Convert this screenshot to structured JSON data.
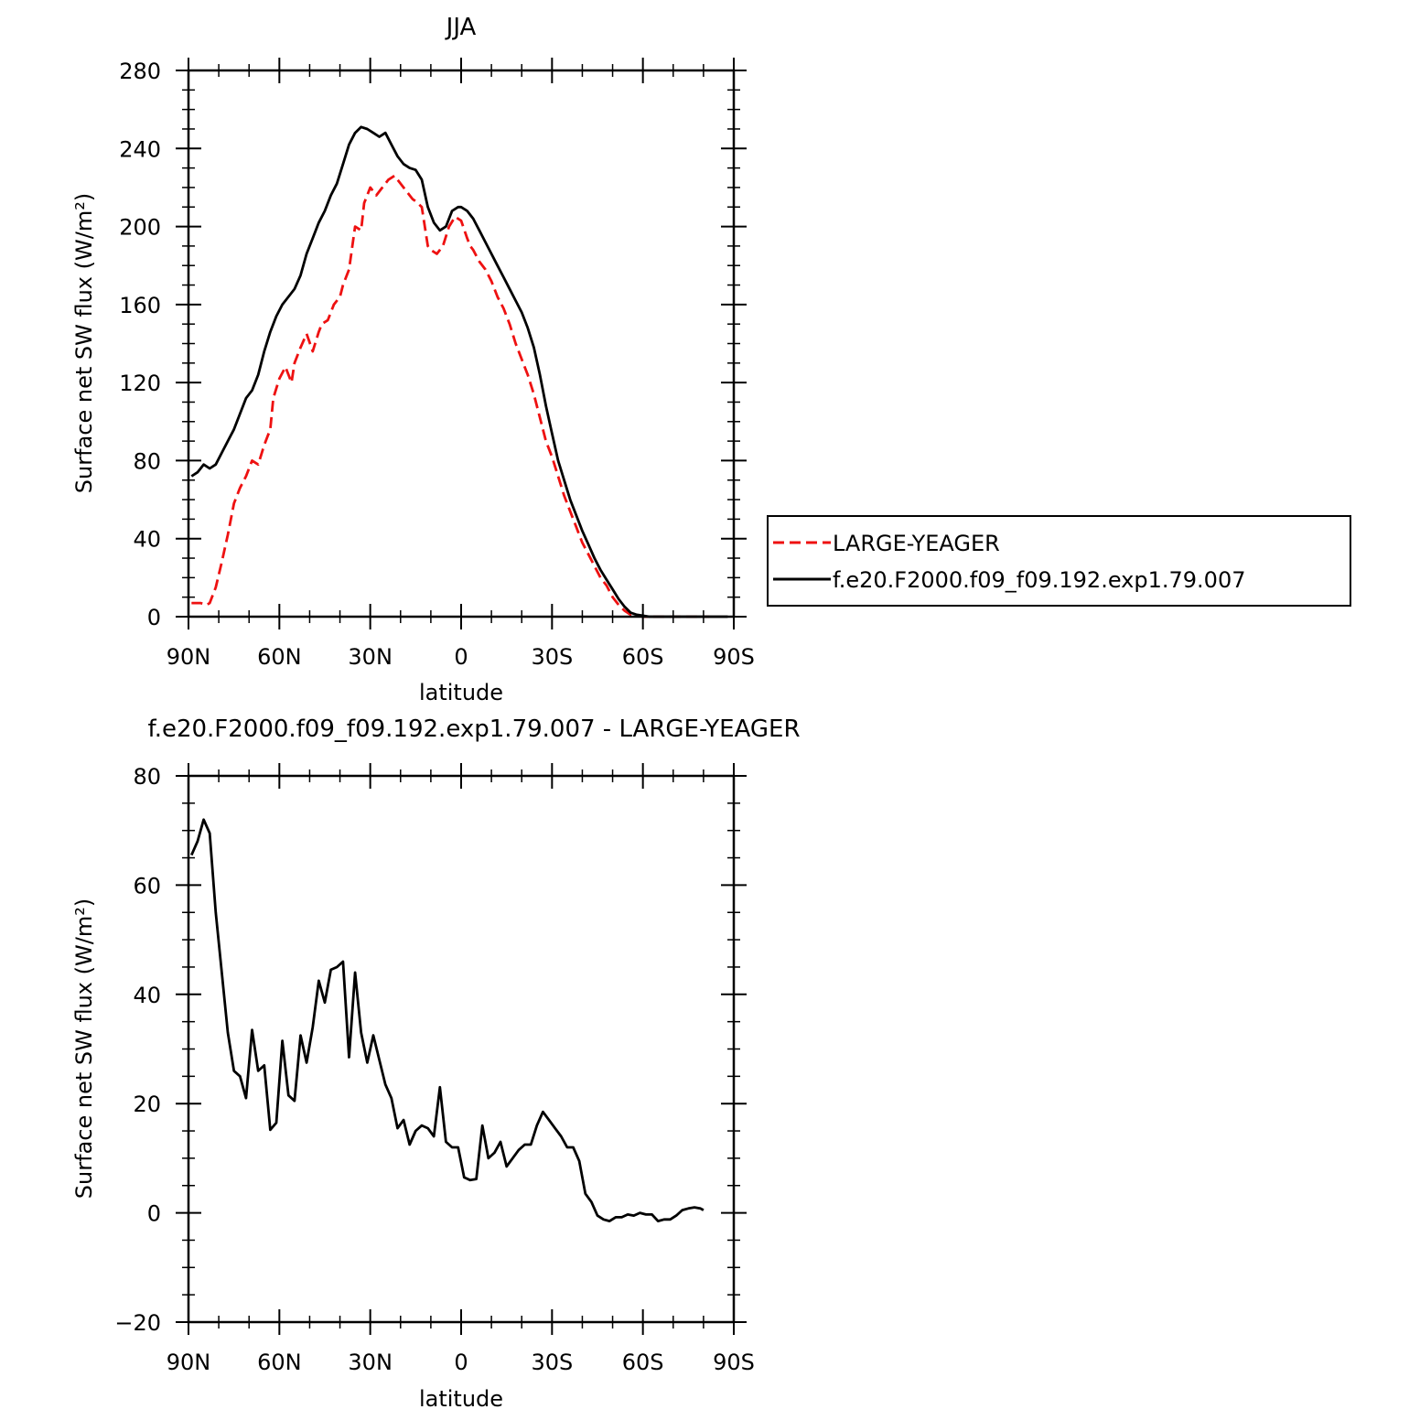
{
  "chart_data": [
    {
      "type": "line",
      "title": "JJA",
      "xlabel": "latitude",
      "ylabel": "Surface net SW flux (W/m²)",
      "xlim": [
        90,
        -90
      ],
      "ylim": [
        0,
        280
      ],
      "xticks": [
        90,
        60,
        30,
        0,
        -30,
        -60,
        -90
      ],
      "xtick_labels": [
        "90N",
        "60N",
        "30N",
        "0",
        "30S",
        "60S",
        "90S"
      ],
      "yticks": [
        0,
        40,
        80,
        120,
        160,
        200,
        240,
        280
      ],
      "ytick_labels": [
        "0",
        "40",
        "80",
        "120",
        "160",
        "200",
        "240",
        "280"
      ],
      "legend": {
        "placement": "right",
        "entries": [
          {
            "label": "LARGE-YEAGER",
            "color": "#ee1111",
            "dash": "dashed"
          },
          {
            "label": "f.e20.F2000.f09_f09.192.exp1.79.007",
            "color": "#000000",
            "dash": "solid"
          }
        ]
      },
      "series": [
        {
          "name": "LARGE-YEAGER",
          "color": "#ee1111",
          "style": "dashed",
          "x": [
            89,
            86,
            84,
            83,
            81,
            79,
            77,
            75,
            73,
            71,
            69,
            67,
            65,
            64,
            63,
            62,
            60,
            58,
            56,
            55,
            53,
            51,
            49,
            47,
            46,
            44,
            42,
            40,
            39,
            38,
            37,
            35,
            33,
            32,
            30,
            28,
            26,
            24,
            22,
            20,
            18,
            16,
            15,
            13,
            11,
            10,
            8,
            6,
            4,
            2,
            0,
            -2,
            -3,
            -4,
            -6,
            -8,
            -10,
            -12,
            -14,
            -16,
            -18,
            -20,
            -22,
            -24,
            -26,
            -28,
            -30,
            -32,
            -34,
            -36,
            -38,
            -40,
            -42,
            -44,
            -46,
            -48,
            -50,
            -52,
            -54,
            -56,
            -58,
            -60,
            -62,
            -64,
            -66,
            -68,
            -70,
            -72,
            -74,
            -76,
            -78,
            -80,
            -82
          ],
          "y": [
            7,
            7,
            6,
            7,
            15,
            28,
            42,
            58,
            66,
            72,
            80,
            78,
            88,
            92,
            96,
            112,
            122,
            128,
            120,
            130,
            138,
            145,
            136,
            146,
            150,
            152,
            160,
            164,
            170,
            174,
            178,
            200,
            198,
            212,
            220,
            216,
            220,
            224,
            226,
            222,
            218,
            214,
            213,
            210,
            190,
            188,
            186,
            190,
            200,
            205,
            203,
            194,
            190,
            188,
            182,
            178,
            172,
            164,
            158,
            150,
            140,
            132,
            124,
            114,
            102,
            90,
            82,
            72,
            62,
            54,
            46,
            38,
            32,
            26,
            20,
            16,
            10,
            6,
            3,
            1,
            0.5,
            0,
            0,
            0,
            0,
            0,
            0,
            0,
            0,
            0,
            0,
            0,
            0
          ]
        },
        {
          "name": "f.e20.F2000.f09_f09.192.exp1.79.007",
          "color": "#000000",
          "style": "solid",
          "x": [
            89,
            87,
            85,
            83,
            81,
            79,
            77,
            75,
            73,
            71,
            69,
            67,
            65,
            63,
            61,
            59,
            57,
            55,
            53,
            51,
            49,
            47,
            45,
            43,
            41,
            39,
            37,
            35,
            33,
            31,
            29,
            27,
            25,
            23,
            21,
            19,
            17,
            15,
            13,
            11,
            9,
            7,
            5,
            3,
            1,
            0,
            -2,
            -4,
            -6,
            -8,
            -10,
            -12,
            -14,
            -16,
            -18,
            -20,
            -22,
            -24,
            -26,
            -28,
            -30,
            -32,
            -34,
            -36,
            -38,
            -40,
            -42,
            -44,
            -46,
            -48,
            -50,
            -52,
            -54,
            -56,
            -58,
            -60,
            -62,
            -64,
            -66,
            -68,
            -70,
            -72,
            -74,
            -76,
            -78,
            -80,
            -82,
            -84,
            -86,
            -88
          ],
          "y": [
            72,
            74,
            78,
            76,
            78,
            84,
            90,
            96,
            104,
            112,
            116,
            124,
            136,
            146,
            154,
            160,
            164,
            168,
            175,
            186,
            194,
            202,
            208,
            216,
            222,
            232,
            242,
            248,
            251,
            250,
            248,
            246,
            248,
            242,
            236,
            232,
            230,
            229,
            224,
            210,
            202,
            198,
            200,
            208,
            210,
            210,
            208,
            204,
            198,
            192,
            186,
            180,
            174,
            168,
            162,
            156,
            148,
            138,
            124,
            108,
            94,
            80,
            70,
            60,
            52,
            44,
            37,
            30,
            24,
            19,
            14,
            9,
            5,
            2,
            1,
            0.5,
            0,
            0,
            0,
            0,
            0,
            0,
            0,
            0,
            0,
            0,
            0,
            0,
            0,
            0
          ]
        }
      ]
    },
    {
      "type": "line",
      "title": "f.e20.F2000.f09_f09.192.exp1.79.007 - LARGE-YEAGER",
      "xlabel": "latitude",
      "ylabel": "Surface net SW flux (W/m²)",
      "xlim": [
        90,
        -90
      ],
      "ylim": [
        -20,
        80
      ],
      "xticks": [
        90,
        60,
        30,
        0,
        -30,
        -60,
        -90
      ],
      "xtick_labels": [
        "90N",
        "60N",
        "30N",
        "0",
        "30S",
        "60S",
        "90S"
      ],
      "yticks": [
        -20,
        0,
        20,
        40,
        60,
        80
      ],
      "ytick_labels": [
        "−20",
        "0",
        "20",
        "40",
        "60",
        "80"
      ],
      "series": [
        {
          "color": "#000000",
          "style": "solid",
          "x": [
            89,
            87,
            85,
            83,
            81,
            79,
            77,
            75,
            73,
            71,
            69,
            67,
            65,
            63,
            61,
            59,
            57,
            55,
            53,
            51,
            49,
            47,
            45,
            43,
            41,
            39,
            37,
            35,
            33,
            31,
            29,
            27,
            25,
            23,
            21,
            19,
            17,
            15,
            13,
            11,
            9,
            7,
            5,
            3,
            1,
            -1,
            -3,
            -5,
            -7,
            -9,
            -11,
            -13,
            -15,
            -17,
            -19,
            -21,
            -23,
            -25,
            -27,
            -29,
            -31,
            -33,
            -35,
            -37,
            -39,
            -41,
            -43,
            -45,
            -47,
            -49,
            -51,
            -53,
            -55,
            -57,
            -59,
            -61,
            -63,
            -65,
            -67,
            -69,
            -71,
            -73,
            -75,
            -77,
            -79,
            -80
          ],
          "y": [
            65.5,
            68,
            72,
            69.5,
            55,
            44,
            33,
            26,
            25,
            21,
            33.5,
            26,
            27,
            15.2,
            16.5,
            31.5,
            21.5,
            20.5,
            32.5,
            27.5,
            34,
            42.5,
            38.5,
            44.5,
            45,
            46,
            28.5,
            44,
            33,
            27.5,
            32.5,
            28,
            23.5,
            21,
            15.5,
            17,
            12.5,
            15,
            16,
            15.5,
            14,
            23,
            13,
            12,
            12,
            6.5,
            6,
            6.2,
            16,
            10,
            11,
            13,
            8.5,
            10,
            11.5,
            12.5,
            12.5,
            16,
            18.5,
            17,
            15.5,
            14,
            12,
            12,
            9.5,
            3.5,
            2,
            -0.5,
            -1.2,
            -1.5,
            -0.8,
            -0.8,
            -0.3,
            -0.5,
            0,
            -0.3,
            -0.3,
            -1.5,
            -1.2,
            -1.2,
            -0.5,
            0.5,
            0.8,
            1,
            0.8,
            0.5
          ]
        }
      ]
    }
  ]
}
